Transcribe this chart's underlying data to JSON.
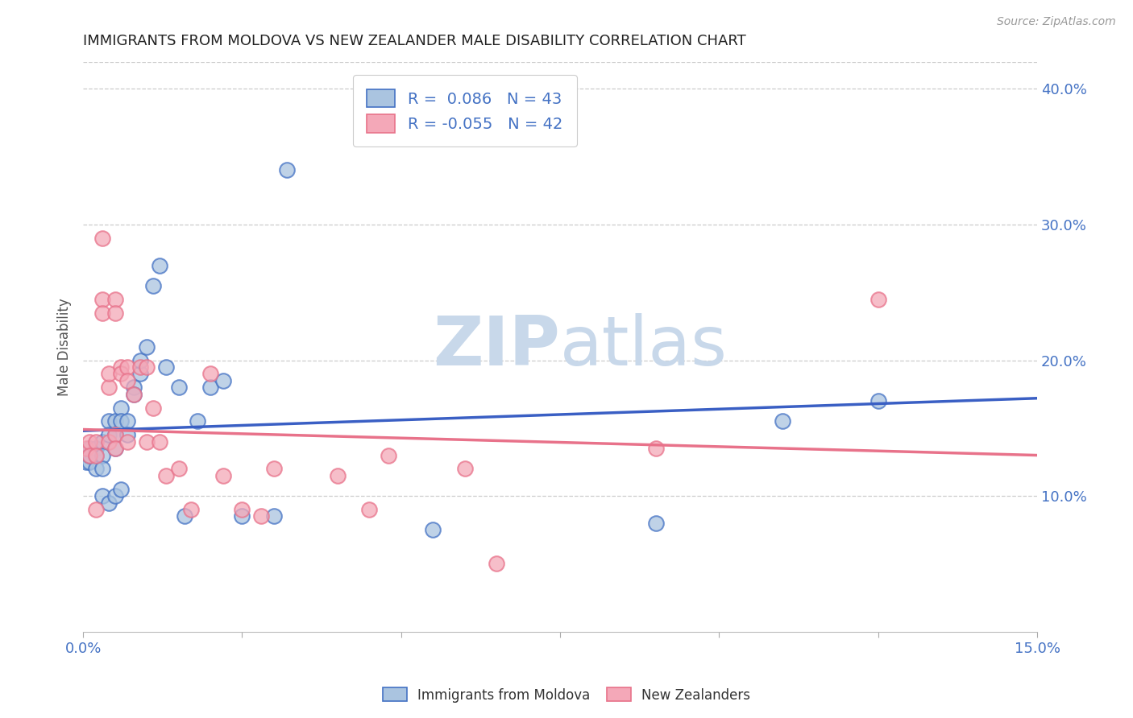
{
  "title": "IMMIGRANTS FROM MOLDOVA VS NEW ZEALANDER MALE DISABILITY CORRELATION CHART",
  "source": "Source: ZipAtlas.com",
  "ylabel": "Male Disability",
  "xlim": [
    0.0,
    0.15
  ],
  "ylim": [
    0.0,
    0.42
  ],
  "xticks": [
    0.0,
    0.025,
    0.05,
    0.075,
    0.1,
    0.125,
    0.15
  ],
  "blue_R": 0.086,
  "blue_N": 43,
  "pink_R": -0.055,
  "pink_N": 42,
  "blue_color": "#aac4e0",
  "pink_color": "#f4a8b8",
  "blue_edge_color": "#4472C4",
  "pink_edge_color": "#E8728A",
  "blue_line_color": "#3A5FC4",
  "pink_line_color": "#E8728A",
  "watermark_color": "#c8d8ea",
  "axis_color": "#4472C4",
  "background_color": "#ffffff",
  "grid_color": "#cccccc",
  "blue_scatter_x": [
    0.0005,
    0.001,
    0.001,
    0.001,
    0.002,
    0.002,
    0.002,
    0.003,
    0.003,
    0.003,
    0.003,
    0.004,
    0.004,
    0.004,
    0.005,
    0.005,
    0.005,
    0.005,
    0.006,
    0.006,
    0.006,
    0.007,
    0.007,
    0.008,
    0.008,
    0.009,
    0.009,
    0.01,
    0.011,
    0.012,
    0.013,
    0.015,
    0.016,
    0.018,
    0.02,
    0.022,
    0.025,
    0.03,
    0.032,
    0.055,
    0.09,
    0.11,
    0.125
  ],
  "blue_scatter_y": [
    0.125,
    0.125,
    0.135,
    0.13,
    0.135,
    0.13,
    0.12,
    0.14,
    0.13,
    0.12,
    0.1,
    0.155,
    0.145,
    0.095,
    0.155,
    0.145,
    0.135,
    0.1,
    0.165,
    0.155,
    0.105,
    0.155,
    0.145,
    0.18,
    0.175,
    0.19,
    0.2,
    0.21,
    0.255,
    0.27,
    0.195,
    0.18,
    0.085,
    0.155,
    0.18,
    0.185,
    0.085,
    0.085,
    0.34,
    0.075,
    0.08,
    0.155,
    0.17
  ],
  "pink_scatter_x": [
    0.0005,
    0.001,
    0.001,
    0.002,
    0.002,
    0.002,
    0.003,
    0.003,
    0.003,
    0.004,
    0.004,
    0.004,
    0.005,
    0.005,
    0.005,
    0.005,
    0.006,
    0.006,
    0.007,
    0.007,
    0.007,
    0.008,
    0.009,
    0.01,
    0.01,
    0.011,
    0.012,
    0.013,
    0.015,
    0.017,
    0.02,
    0.022,
    0.025,
    0.028,
    0.03,
    0.04,
    0.045,
    0.048,
    0.06,
    0.065,
    0.09,
    0.125
  ],
  "pink_scatter_y": [
    0.135,
    0.14,
    0.13,
    0.14,
    0.13,
    0.09,
    0.29,
    0.245,
    0.235,
    0.18,
    0.19,
    0.14,
    0.245,
    0.235,
    0.145,
    0.135,
    0.195,
    0.19,
    0.195,
    0.185,
    0.14,
    0.175,
    0.195,
    0.195,
    0.14,
    0.165,
    0.14,
    0.115,
    0.12,
    0.09,
    0.19,
    0.115,
    0.09,
    0.085,
    0.12,
    0.115,
    0.09,
    0.13,
    0.12,
    0.05,
    0.135,
    0.245
  ],
  "blue_trend_x0": 0.0,
  "blue_trend_y0": 0.148,
  "blue_trend_x1": 0.15,
  "blue_trend_y1": 0.172,
  "pink_trend_x0": 0.0,
  "pink_trend_y0": 0.149,
  "pink_trend_x1": 0.15,
  "pink_trend_y1": 0.13
}
